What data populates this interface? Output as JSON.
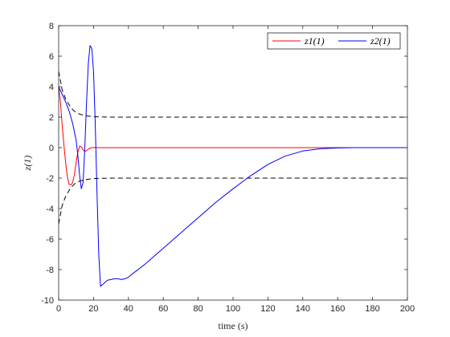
{
  "chart_data": {
    "type": "line",
    "xlabel": "time (s)",
    "ylabel": "z(1)",
    "xlim": [
      0,
      200
    ],
    "ylim": [
      -10,
      8
    ],
    "xticks": [
      0,
      20,
      40,
      60,
      80,
      100,
      120,
      140,
      160,
      180,
      200
    ],
    "yticks": [
      -10,
      -8,
      -6,
      -4,
      -2,
      0,
      2,
      4,
      6,
      8
    ],
    "grid": false,
    "legend_position": "top-right",
    "legend": [
      "z1(1)",
      "z2(1)"
    ],
    "series": [
      {
        "name": "z1(1)",
        "color": "#ff0000",
        "style": "solid",
        "points": [
          [
            0,
            4.0
          ],
          [
            1,
            3.0
          ],
          [
            2,
            1.5
          ],
          [
            3,
            0.2
          ],
          [
            4,
            -1.0
          ],
          [
            5,
            -1.9
          ],
          [
            6,
            -2.4
          ],
          [
            7,
            -2.45
          ],
          [
            8,
            -2.3
          ],
          [
            9,
            -1.8
          ],
          [
            10,
            -1.0
          ],
          [
            11,
            -0.3
          ],
          [
            12,
            0.1
          ],
          [
            13,
            0.05
          ],
          [
            14,
            -0.15
          ],
          [
            15,
            -0.25
          ],
          [
            16,
            -0.2
          ],
          [
            17,
            -0.1
          ],
          [
            18,
            -0.03
          ],
          [
            19,
            0.0
          ],
          [
            20,
            0.0
          ],
          [
            200,
            0.0
          ]
        ]
      },
      {
        "name": "z2(1)",
        "color": "#0000ff",
        "style": "solid",
        "points": [
          [
            0,
            4.0
          ],
          [
            2,
            3.5
          ],
          [
            4,
            3.0
          ],
          [
            6,
            2.4
          ],
          [
            8,
            1.6
          ],
          [
            10,
            0.5
          ],
          [
            11,
            -0.5
          ],
          [
            12,
            -1.8
          ],
          [
            13,
            -2.7
          ],
          [
            14,
            -2.3
          ],
          [
            15,
            0.0
          ],
          [
            16,
            3.0
          ],
          [
            17,
            5.5
          ],
          [
            18,
            6.7
          ],
          [
            19,
            6.5
          ],
          [
            20,
            5.0
          ],
          [
            21,
            1.5
          ],
          [
            22,
            -3.0
          ],
          [
            23,
            -7.0
          ],
          [
            24,
            -9.1
          ],
          [
            26,
            -8.9
          ],
          [
            28,
            -8.7
          ],
          [
            30,
            -8.65
          ],
          [
            32,
            -8.6
          ],
          [
            34,
            -8.6
          ],
          [
            36,
            -8.65
          ],
          [
            38,
            -8.6
          ],
          [
            40,
            -8.5
          ],
          [
            42,
            -8.3
          ],
          [
            45,
            -8.05
          ],
          [
            50,
            -7.6
          ],
          [
            60,
            -6.6
          ],
          [
            70,
            -5.6
          ],
          [
            80,
            -4.6
          ],
          [
            90,
            -3.6
          ],
          [
            100,
            -2.7
          ],
          [
            110,
            -1.85
          ],
          [
            120,
            -1.1
          ],
          [
            130,
            -0.55
          ],
          [
            140,
            -0.22
          ],
          [
            150,
            -0.07
          ],
          [
            160,
            -0.02
          ],
          [
            170,
            0.0
          ],
          [
            200,
            0.0
          ]
        ]
      },
      {
        "color": "#000000",
        "style": "dashed",
        "points": [
          [
            0,
            5.0
          ],
          [
            2,
            3.8
          ],
          [
            4,
            3.2
          ],
          [
            6,
            2.8
          ],
          [
            8,
            2.5
          ],
          [
            10,
            2.3
          ],
          [
            12,
            2.2
          ],
          [
            15,
            2.1
          ],
          [
            20,
            2.03
          ],
          [
            25,
            2.01
          ],
          [
            30,
            2.0
          ],
          [
            200,
            2.0
          ]
        ]
      },
      {
        "color": "#000000",
        "style": "dashed",
        "points": [
          [
            0,
            -5.0
          ],
          [
            2,
            -3.8
          ],
          [
            4,
            -3.2
          ],
          [
            6,
            -2.8
          ],
          [
            8,
            -2.5
          ],
          [
            10,
            -2.3
          ],
          [
            12,
            -2.2
          ],
          [
            15,
            -2.1
          ],
          [
            20,
            -2.03
          ],
          [
            25,
            -2.01
          ],
          [
            30,
            -2.0
          ],
          [
            200,
            -2.0
          ]
        ]
      }
    ]
  }
}
